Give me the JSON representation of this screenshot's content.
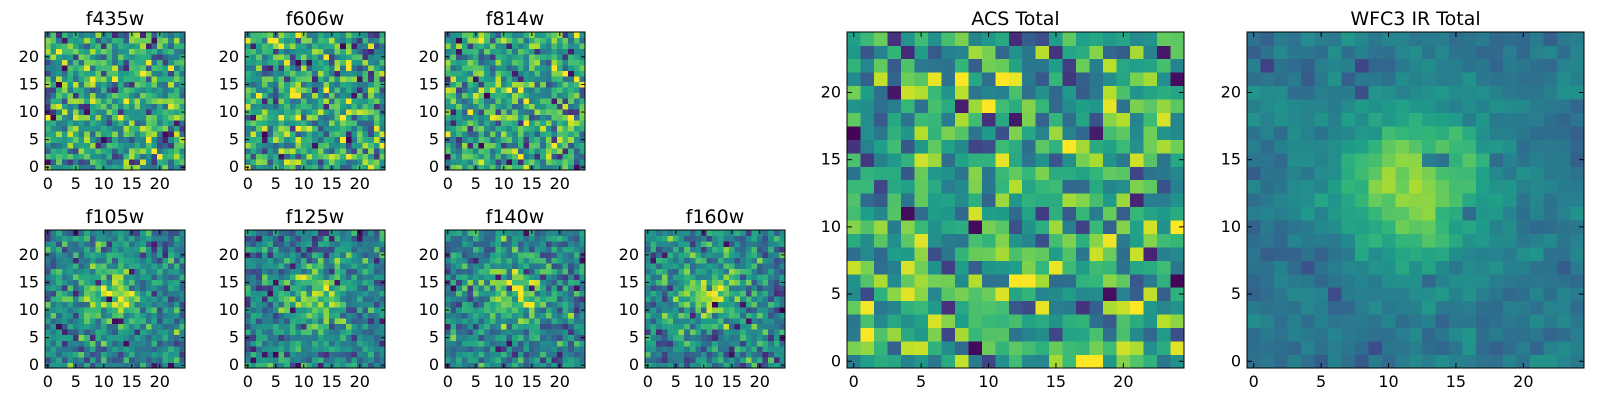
{
  "colormap": {
    "name": "viridis",
    "stops": [
      "#440154",
      "#482878",
      "#3e4989",
      "#31688e",
      "#26828e",
      "#1f9e89",
      "#35b779",
      "#6ece58",
      "#b5de2b",
      "#fde725"
    ]
  },
  "chart_data": [
    {
      "id": "f435w",
      "type": "heatmap",
      "title": "f435w",
      "size": 25,
      "style": "noisy",
      "xticks": [
        0,
        5,
        10,
        15,
        20
      ],
      "yticks": [
        0,
        5,
        10,
        15,
        20
      ],
      "xlim": [
        0,
        25
      ],
      "ylim": [
        0,
        25
      ],
      "seed": 435
    },
    {
      "id": "f606w",
      "type": "heatmap",
      "title": "f606w",
      "size": 25,
      "style": "noisy",
      "xticks": [
        0,
        5,
        10,
        15,
        20
      ],
      "yticks": [
        0,
        5,
        10,
        15,
        20
      ],
      "xlim": [
        0,
        25
      ],
      "ylim": [
        0,
        25
      ],
      "seed": 606
    },
    {
      "id": "f814w",
      "type": "heatmap",
      "title": "f814w",
      "size": 25,
      "style": "noisy",
      "xticks": [
        0,
        5,
        10,
        15,
        20
      ],
      "yticks": [
        0,
        5,
        10,
        15,
        20
      ],
      "xlim": [
        0,
        25
      ],
      "ylim": [
        0,
        25
      ],
      "seed": 814
    },
    {
      "id": "f105w",
      "type": "heatmap",
      "title": "f105w",
      "size": 25,
      "style": "centered",
      "xticks": [
        0,
        5,
        10,
        15,
        20
      ],
      "yticks": [
        0,
        5,
        10,
        15,
        20
      ],
      "xlim": [
        0,
        25
      ],
      "ylim": [
        0,
        25
      ],
      "seed": 105
    },
    {
      "id": "f125w",
      "type": "heatmap",
      "title": "f125w",
      "size": 25,
      "style": "centered",
      "xticks": [
        0,
        5,
        10,
        15,
        20
      ],
      "yticks": [
        0,
        5,
        10,
        15,
        20
      ],
      "xlim": [
        0,
        25
      ],
      "ylim": [
        0,
        25
      ],
      "seed": 125
    },
    {
      "id": "f140w",
      "type": "heatmap",
      "title": "f140w",
      "size": 25,
      "style": "centered",
      "xticks": [
        0,
        5,
        10,
        15,
        20
      ],
      "yticks": [
        0,
        5,
        10,
        15,
        20
      ],
      "xlim": [
        0,
        25
      ],
      "ylim": [
        0,
        25
      ],
      "seed": 140
    },
    {
      "id": "f160w",
      "type": "heatmap",
      "title": "f160w",
      "size": 25,
      "style": "centered",
      "xticks": [
        0,
        5,
        10,
        15,
        20
      ],
      "yticks": [
        0,
        5,
        10,
        15,
        20
      ],
      "xlim": [
        0,
        25
      ],
      "ylim": [
        0,
        25
      ],
      "seed": 160
    },
    {
      "id": "acs-total",
      "type": "heatmap",
      "title": "ACS Total",
      "size": 25,
      "style": "noisy",
      "xticks": [
        0,
        5,
        10,
        15,
        20
      ],
      "yticks": [
        0,
        5,
        10,
        15,
        20
      ],
      "xlim": [
        0,
        25
      ],
      "ylim": [
        0,
        25
      ],
      "seed": 7
    },
    {
      "id": "wfc3-ir-total",
      "type": "heatmap",
      "title": "WFC3 IR Total",
      "size": 25,
      "style": "smooth",
      "xticks": [
        0,
        5,
        10,
        15,
        20
      ],
      "yticks": [
        0,
        5,
        10,
        15,
        20
      ],
      "xlim": [
        0,
        25
      ],
      "ylim": [
        0,
        25
      ],
      "seed": 3
    }
  ]
}
